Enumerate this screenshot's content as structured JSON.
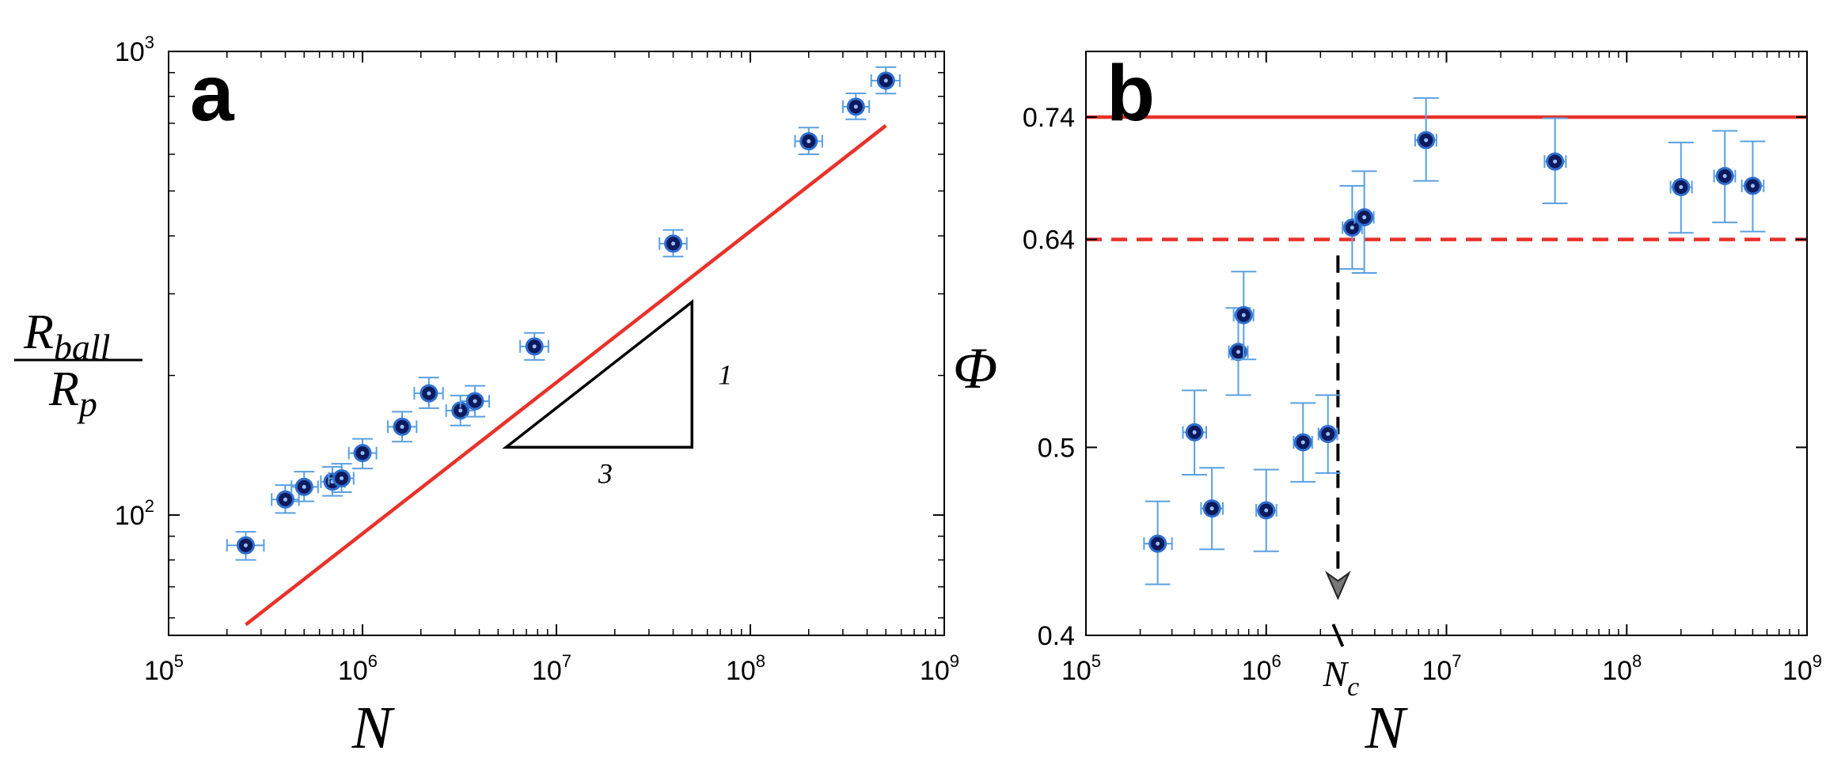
{
  "chart_data": [
    {
      "type": "scatter",
      "panel_label": "a",
      "xscale": "log",
      "yscale": "log",
      "xlim": [
        100000,
        1000000000
      ],
      "ylim": [
        55,
        1000
      ],
      "xlabel": "N",
      "ylabel": {
        "numerator_base": "R",
        "numerator_sub": "ball",
        "denominator_base": "R",
        "denominator_sub": "p"
      },
      "xticks": [
        {
          "value": 100000,
          "base": "10",
          "exp": "5"
        },
        {
          "value": 1000000,
          "base": "10",
          "exp": "6"
        },
        {
          "value": 10000000,
          "base": "10",
          "exp": "7"
        },
        {
          "value": 100000000,
          "base": "10",
          "exp": "8"
        },
        {
          "value": 1000000000,
          "base": "10",
          "exp": "9"
        }
      ],
      "yticks": [
        {
          "value": 100,
          "base": "10",
          "exp": "2"
        },
        {
          "value": 1000,
          "base": "10",
          "exp": "3"
        }
      ],
      "series": [
        {
          "name": "data",
          "x": [
            250000,
            400000,
            500000,
            700000,
            780000,
            1000000,
            1600000,
            2200000,
            3200000,
            3800000,
            7700000,
            40000000,
            200000000,
            350000000,
            500000000
          ],
          "y": [
            86,
            108,
            115,
            118,
            120,
            136,
            155,
            183,
            168,
            176,
            231,
            385,
            640,
            760,
            865
          ],
          "yerr_low": [
            80,
            101,
            107,
            110,
            112,
            126,
            144,
            170,
            156,
            163,
            216,
            361,
            600,
            714,
            811
          ],
          "yerr_high": [
            92,
            116,
            124,
            127,
            129,
            146,
            167,
            198,
            181,
            190,
            247,
            412,
            685,
            812,
            925
          ],
          "xerr_low": [
            200000,
            340000,
            430000,
            610000,
            670000,
            850000,
            1350000,
            1850000,
            2700000,
            3200000,
            6500000,
            34000000,
            170000000,
            300000000,
            420000000
          ],
          "xerr_high": [
            310000,
            470000,
            590000,
            810000,
            900000,
            1180000,
            1900000,
            2600000,
            3800000,
            4500000,
            9100000,
            47000000,
            235000000,
            410000000,
            590000000
          ]
        }
      ],
      "fit_line": {
        "slope": "1/3",
        "x": [
          250000,
          500000000
        ],
        "y": [
          58,
          692
        ],
        "color": "#e8322a"
      },
      "slope_triangle": {
        "x_left": 5500000,
        "x_right": 50000000,
        "y_bottom": 140,
        "y_top": 288,
        "horizontal_label": "3",
        "vertical_label": "1"
      }
    },
    {
      "type": "scatter",
      "panel_label": "b",
      "xscale": "log",
      "yscale": "log",
      "xlim": [
        100000,
        1000000000
      ],
      "ylim": [
        0.4,
        0.8
      ],
      "xlabel": "N",
      "ylabel": "Φ",
      "xticks": [
        {
          "value": 100000,
          "base": "10",
          "exp": "5"
        },
        {
          "value": 1000000,
          "base": "10",
          "exp": "6"
        },
        {
          "value": 10000000,
          "base": "10",
          "exp": "7"
        },
        {
          "value": 100000000,
          "base": "10",
          "exp": "8"
        },
        {
          "value": 1000000000,
          "base": "10",
          "exp": "9"
        }
      ],
      "yticks": [
        "0.4",
        "0.5",
        "0.64",
        "0.74"
      ],
      "ytick_values": [
        0.4,
        0.5,
        0.64,
        0.74
      ],
      "series": [
        {
          "name": "data",
          "x": [
            250000,
            400000,
            500000,
            700000,
            750000,
            1000000,
            1600000,
            2200000,
            3000000,
            3500000,
            7700000,
            40000000,
            200000000,
            350000000,
            500000000
          ],
          "y": [
            0.446,
            0.509,
            0.465,
            0.56,
            0.585,
            0.464,
            0.503,
            0.508,
            0.649,
            0.657,
            0.72,
            0.702,
            0.681,
            0.69,
            0.682
          ],
          "yerr_low": [
            0.425,
            0.484,
            0.443,
            0.532,
            0.555,
            0.442,
            0.48,
            0.485,
            0.618,
            0.615,
            0.686,
            0.668,
            0.645,
            0.653,
            0.646
          ],
          "yerr_high": [
            0.469,
            0.535,
            0.488,
            0.59,
            0.616,
            0.487,
            0.527,
            0.532,
            0.682,
            0.694,
            0.757,
            0.739,
            0.718,
            0.728,
            0.719
          ],
          "xerr_low": [
            210000,
            345000,
            435000,
            620000,
            660000,
            880000,
            1420000,
            1950000,
            2650000,
            3100000,
            6700000,
            35000000,
            175000000,
            305000000,
            435000000
          ],
          "xerr_high": [
            300000,
            465000,
            575000,
            790000,
            850000,
            1140000,
            1800000,
            2480000,
            3400000,
            3950000,
            8800000,
            46000000,
            230000000,
            400000000,
            575000000
          ]
        }
      ],
      "hlines": [
        {
          "y": 0.74,
          "style": "solid",
          "color": "#e8322a"
        },
        {
          "y": 0.64,
          "style": "dashed",
          "color": "#e8322a"
        }
      ],
      "annotation": {
        "label_base": "N",
        "label_sub": "c",
        "x": 2500000,
        "from_y": 0.628,
        "to_y": 0.418
      }
    }
  ]
}
